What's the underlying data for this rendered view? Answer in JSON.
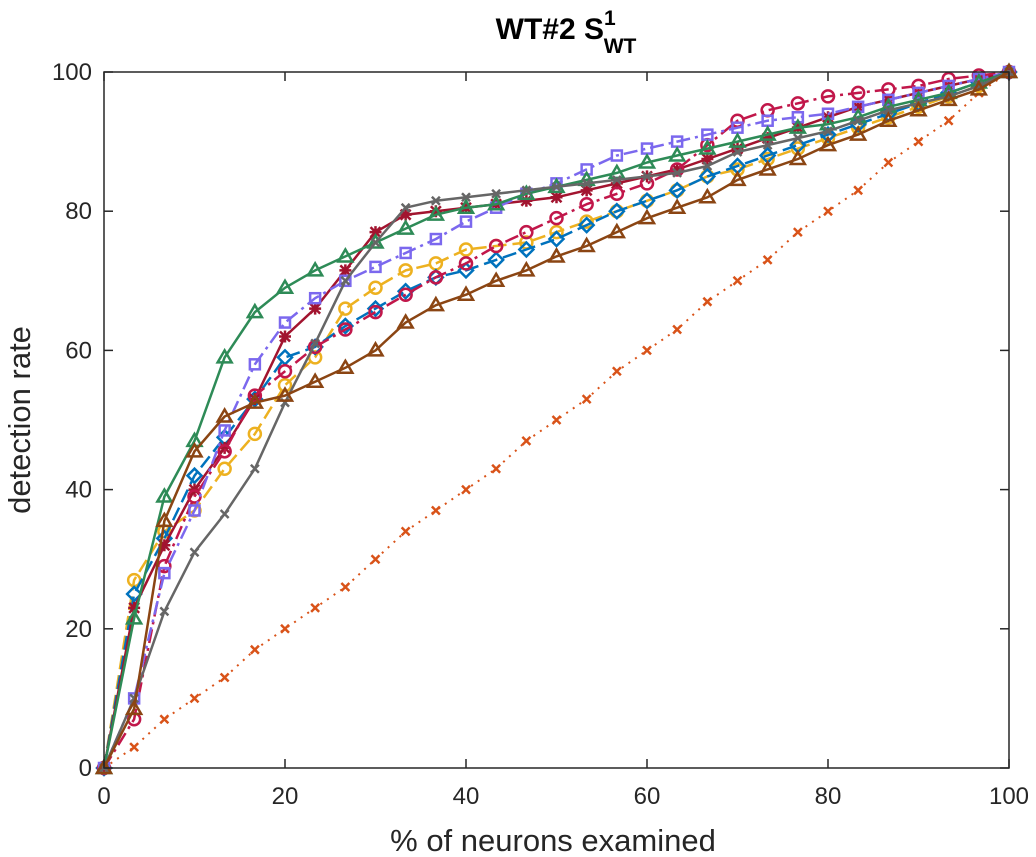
{
  "chart_data": {
    "type": "line",
    "title": {
      "main": "WT#2 S",
      "sup": "1",
      "sub": "WT"
    },
    "xlabel": "% of neurons examined",
    "ylabel": "detection rate",
    "xlim": [
      0,
      100
    ],
    "ylim": [
      0,
      100
    ],
    "xticks": [
      0,
      20,
      40,
      60,
      80,
      100
    ],
    "yticks": [
      0,
      20,
      40,
      60,
      80,
      100
    ],
    "x_tick_labels": [
      "0",
      "20",
      "40",
      "60",
      "80",
      "100"
    ],
    "y_tick_labels": [
      "0",
      "20",
      "40",
      "60",
      "80",
      "100"
    ],
    "grid": false,
    "box": true,
    "x": [
      0,
      3.33,
      6.67,
      10,
      13.33,
      16.67,
      20,
      23.33,
      26.67,
      30,
      33.33,
      36.67,
      40,
      43.33,
      46.67,
      50,
      53.33,
      56.67,
      60,
      63.33,
      66.67,
      70,
      73.33,
      76.67,
      80,
      83.33,
      86.67,
      90,
      93.33,
      96.67,
      100
    ],
    "series": [
      {
        "color": "#D95319",
        "dash": "2,6",
        "marker": "x",
        "width": 2,
        "values": [
          0,
          3,
          7,
          10,
          13,
          17,
          20,
          23,
          26,
          30,
          34,
          37,
          40,
          43,
          47,
          50,
          53,
          57,
          60,
          63,
          67,
          70,
          73,
          77,
          80,
          83,
          87,
          90,
          93,
          97,
          100
        ]
      },
      {
        "color": "#EDB120",
        "dash": "14,6",
        "marker": "circle",
        "width": 2.5,
        "values": [
          0,
          27,
          34,
          37,
          43,
          48,
          55,
          59,
          66,
          69,
          71.5,
          72.5,
          74.5,
          75,
          75.5,
          77,
          78.5,
          80,
          81.5,
          83,
          85,
          86,
          87.5,
          89,
          90.5,
          92,
          93.5,
          95,
          96.5,
          98,
          100
        ]
      },
      {
        "color": "#0072BD",
        "dash": "14,6",
        "marker": "diamond",
        "width": 2.5,
        "values": [
          0,
          25,
          33,
          42,
          47.5,
          53,
          59,
          60.5,
          63.5,
          66,
          68.5,
          70.5,
          71.5,
          73,
          74.5,
          76,
          78,
          80,
          81.5,
          83,
          85,
          86.5,
          88,
          89.5,
          91,
          92.5,
          94,
          95.5,
          97,
          98.5,
          100
        ]
      },
      {
        "color": "#A2142F",
        "dash": "",
        "marker": "star",
        "width": 2.5,
        "values": [
          0,
          23,
          32,
          40,
          46,
          53,
          62,
          66,
          71.5,
          77,
          79.5,
          80,
          80.5,
          81,
          81.5,
          82,
          83,
          84,
          85,
          86,
          87.5,
          89,
          90.5,
          92,
          93.5,
          95,
          96,
          97,
          98,
          99,
          100
        ]
      },
      {
        "color": "#C1174A",
        "dash": "14,5,3,5",
        "marker": "circle",
        "width": 2.5,
        "values": [
          0,
          7,
          29,
          39,
          45.5,
          53.5,
          57,
          60.5,
          63,
          65.5,
          68,
          70.5,
          72.5,
          75,
          77,
          79,
          81,
          82.5,
          84,
          86,
          89.5,
          93,
          94.5,
          95.5,
          96.5,
          97,
          97.5,
          98,
          99,
          99.5,
          100
        ]
      },
      {
        "color": "#7B68EE",
        "dash": "14,5,3,5",
        "marker": "square",
        "width": 2.5,
        "values": [
          0,
          10,
          28,
          37,
          48.5,
          58,
          64,
          67.5,
          70,
          72,
          74,
          76,
          78.5,
          80.5,
          82.5,
          84,
          86,
          88,
          89,
          90,
          91,
          92,
          93,
          93.5,
          94,
          95,
          96,
          97,
          98,
          99,
          100
        ]
      },
      {
        "color": "#2E8B57",
        "dash": "",
        "marker": "triangle",
        "width": 2.5,
        "values": [
          0,
          21.5,
          39,
          47,
          59,
          65.5,
          69,
          71.5,
          73.5,
          75.5,
          77.5,
          79.5,
          80.5,
          81,
          82.5,
          83.5,
          84.5,
          85.5,
          87,
          88,
          89,
          90,
          91,
          92,
          92.5,
          93.5,
          95,
          96,
          97,
          98.5,
          100
        ]
      },
      {
        "color": "#666666",
        "dash": "",
        "marker": "x",
        "width": 2.5,
        "values": [
          0,
          10,
          22.5,
          31,
          36.5,
          43,
          52.5,
          61,
          70,
          75.5,
          80.5,
          81.5,
          82,
          82.5,
          83,
          83.5,
          84,
          84.5,
          85,
          85.5,
          86.5,
          88.5,
          89.5,
          90.5,
          91.5,
          93,
          94.5,
          95.5,
          96.5,
          98,
          100
        ]
      },
      {
        "color": "#8B4513",
        "dash": "",
        "marker": "triangle",
        "width": 2.5,
        "values": [
          0,
          8.5,
          35.5,
          45.5,
          50.5,
          52.5,
          53.5,
          55.5,
          57.5,
          60,
          64,
          66.5,
          68,
          70,
          71.5,
          73.5,
          75,
          77,
          79,
          80.5,
          82,
          84.5,
          86,
          87.5,
          89.5,
          91,
          93,
          94.5,
          96,
          97.5,
          100
        ]
      }
    ]
  }
}
